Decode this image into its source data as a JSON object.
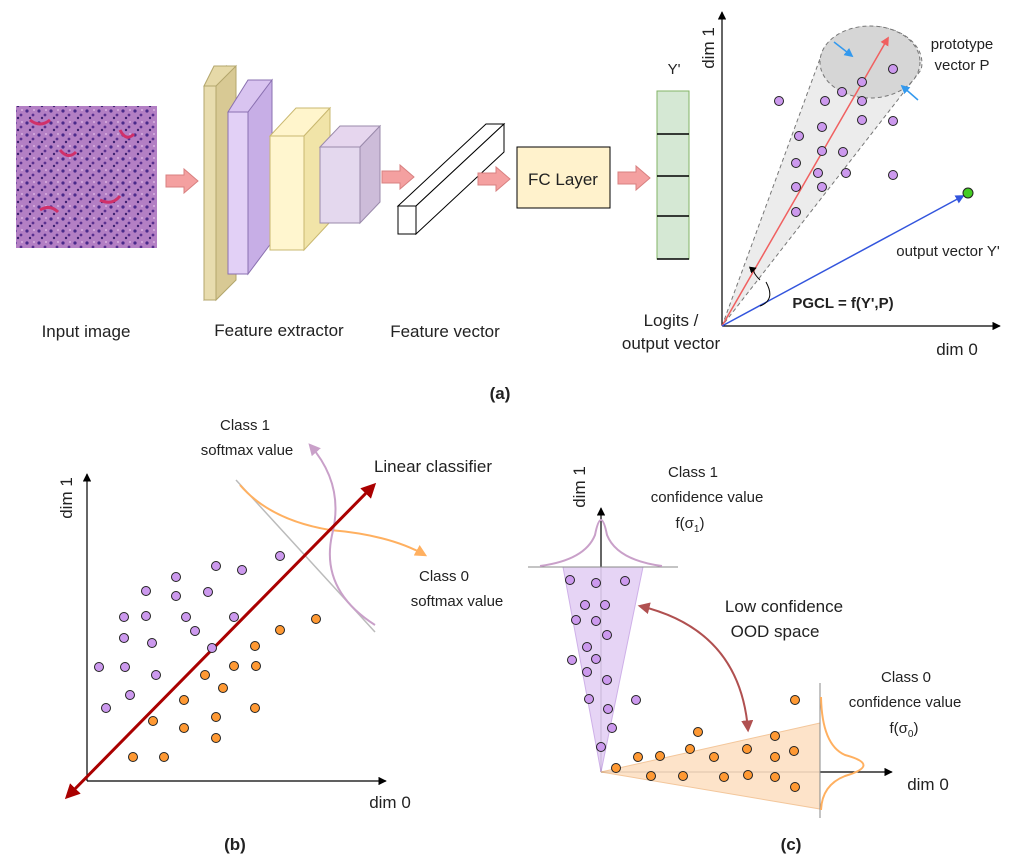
{
  "panel_a": {
    "caption": "(a)",
    "input_label": "Input image",
    "feature_extractor_label": "Feature extractor",
    "feature_vector_label": "Feature vector",
    "fc_layer_label": "FC Layer",
    "logits_label_line1": "Logits /",
    "logits_label_line2": "output vector",
    "y_prime_label": "Y'",
    "dim1_label": "dim 1",
    "dim0_label": "dim 0",
    "prototype_line1": "prototype",
    "prototype_line2": "vector P",
    "output_vector_label": "output vector Y'",
    "pgcl_label": "PGCL = f(Y',P)"
  },
  "panel_b": {
    "caption": "(b)",
    "dim1_label": "dim 1",
    "dim0_label": "dim 0",
    "class1_line1": "Class 1",
    "class1_line2": "softmax value",
    "class0_line1": "Class 0",
    "class0_line2": "softmax value",
    "classifier_label": "Linear classifier"
  },
  "panel_c": {
    "caption": "(c)",
    "dim1_label": "dim 1",
    "dim0_label": "dim 0",
    "class1_line1": "Class 1",
    "class1_line2": "confidence value",
    "class1_f": "f(σ",
    "class1_sub": "1",
    "class1_close": ")",
    "class0_line1": "Class 0",
    "class0_line2": "confidence value",
    "class0_f": "f(σ",
    "class0_sub": "0",
    "class0_close": ")",
    "ood_line1": "Low confidence",
    "ood_line2": "OOD space"
  },
  "colors": {
    "purple_point": "#cc99ee",
    "orange_point": "#ff9933",
    "red_arrow": "#aa0000",
    "blue_arrow": "#3355dd",
    "green_point": "#44cc22",
    "block_arrow": "#f4a0a0"
  }
}
